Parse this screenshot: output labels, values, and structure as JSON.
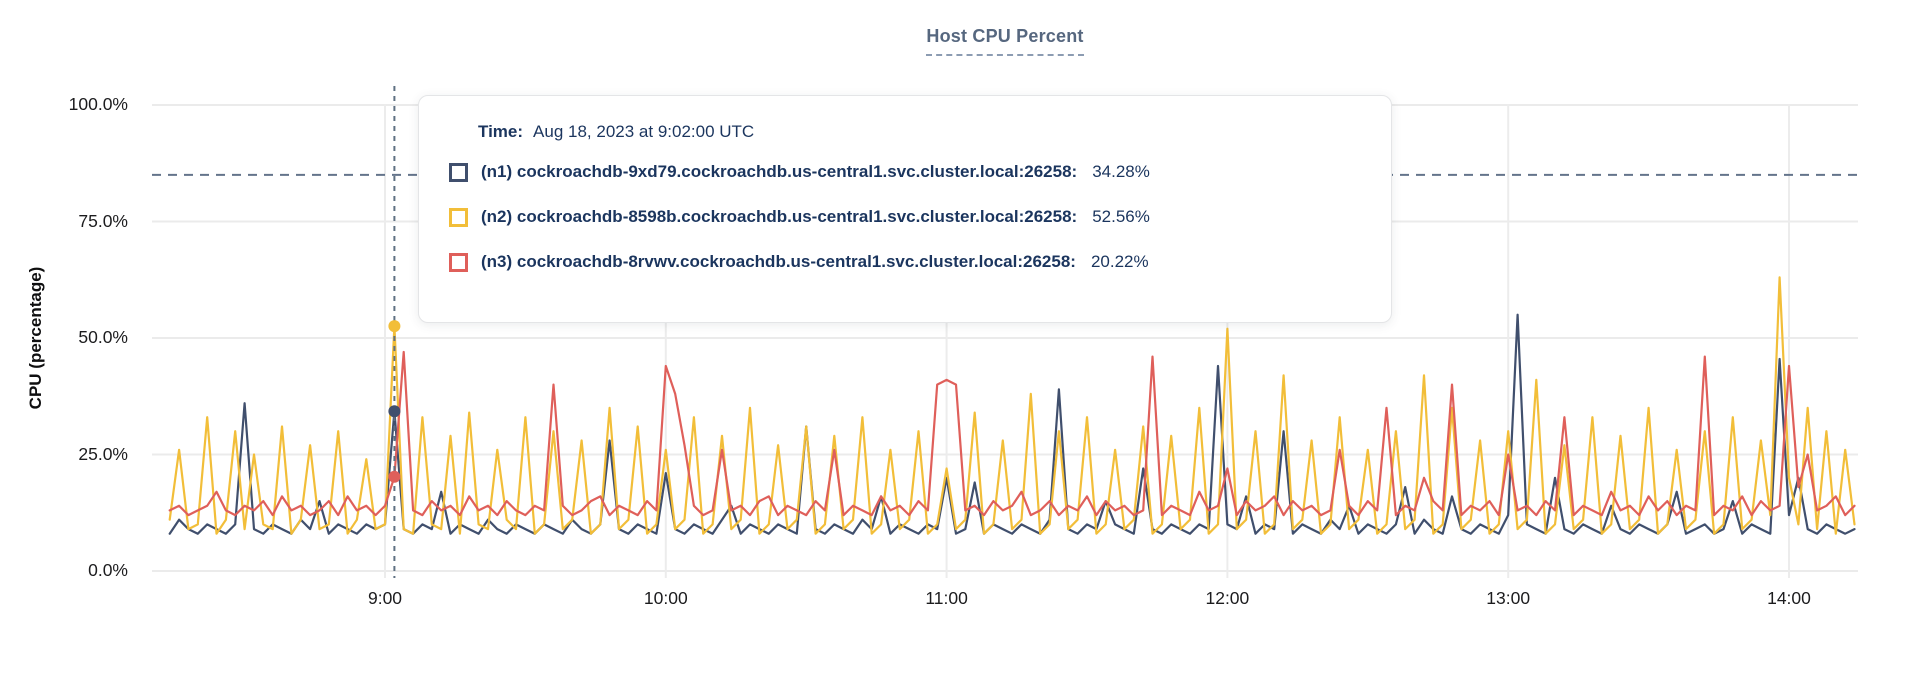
{
  "title": "Host CPU Percent",
  "axes": {
    "y_axis_label": "CPU (percentage)"
  },
  "tooltip": {
    "time_label": "Time:",
    "time_value": "Aug 18, 2023 at 9:02:00 UTC",
    "rows": [
      {
        "id": "n1",
        "label": "(n1) cockroachdb-9xd79.cockroachdb.us-central1.svc.cluster.local:26258:",
        "value": "34.28%",
        "color": "#404f6d"
      },
      {
        "id": "n2",
        "label": "(n2) cockroachdb-8598b.cockroachdb.us-central1.svc.cluster.local:26258:",
        "value": "52.56%",
        "color": "#f2be39"
      },
      {
        "id": "n3",
        "label": "(n3) cockroachdb-8rvwv.cockroachdb.us-central1.svc.cluster.local:26258:",
        "value": "20.22%",
        "color": "#df5f5a"
      }
    ]
  },
  "colors": {
    "grid": "#ebebeb",
    "threshold_dash": "#64748b",
    "hover_dash": "#5f7082",
    "text_navy": "#1b355e",
    "title_slate": "#56677f"
  },
  "chart_data": {
    "type": "line",
    "title": "Host CPU Percent",
    "xlabel": "",
    "ylabel": "CPU (percentage)",
    "ylim": [
      0,
      100
    ],
    "grid": true,
    "legend_position": "tooltip-only",
    "x_unit": "time-of-day",
    "x_start_minute": 494,
    "x_step_minutes": 2,
    "threshold_percent": 85,
    "y_ticks": [
      {
        "value": 100,
        "label": "100.0%"
      },
      {
        "value": 75,
        "label": "75.0%"
      },
      {
        "value": 50,
        "label": "50.0%"
      },
      {
        "value": 25,
        "label": "25.0%"
      },
      {
        "value": 0,
        "label": "0.0%"
      }
    ],
    "x_ticks": [
      {
        "minute": 540,
        "label": "9:00"
      },
      {
        "minute": 600,
        "label": "10:00"
      },
      {
        "minute": 660,
        "label": "11:00"
      },
      {
        "minute": 720,
        "label": "12:00"
      },
      {
        "minute": 780,
        "label": "13:00"
      },
      {
        "minute": 840,
        "label": "14:00"
      }
    ],
    "hover": {
      "minute": 542,
      "time": "Aug 18, 2023 at 9:02:00 UTC",
      "values": [
        34.28,
        52.56,
        20.22
      ]
    },
    "series": [
      {
        "id": "n1",
        "name": "(n1) cockroachdb-9xd79.cockroachdb.us-central1.svc.cluster.local:26258",
        "color": "#404f6d",
        "values": [
          8,
          11,
          9,
          8,
          10,
          9,
          8,
          10,
          36,
          9,
          8,
          10,
          9,
          8,
          11,
          9,
          15,
          8,
          10,
          9,
          8,
          10,
          9,
          10,
          34.3,
          9,
          8,
          10,
          9,
          17,
          8,
          10,
          9,
          8,
          11,
          9,
          8,
          10,
          9,
          8,
          10,
          9,
          8,
          11,
          9,
          8,
          10,
          28,
          9,
          8,
          10,
          9,
          8,
          21,
          9,
          8,
          10,
          9,
          8,
          11,
          14,
          8,
          10,
          9,
          8,
          10,
          9,
          8,
          31,
          9,
          8,
          10,
          9,
          8,
          11,
          9,
          16,
          8,
          10,
          9,
          8,
          10,
          9,
          20,
          8,
          9,
          19,
          8,
          10,
          9,
          8,
          10,
          9,
          8,
          11,
          39,
          9,
          8,
          10,
          9,
          15,
          10,
          9,
          8,
          22,
          9,
          8,
          10,
          9,
          8,
          10,
          9,
          44,
          10,
          9,
          16,
          8,
          10,
          9,
          30,
          8,
          10,
          9,
          8,
          11,
          9,
          14,
          8,
          10,
          9,
          8,
          10,
          18,
          8,
          11,
          9,
          8,
          16,
          9,
          8,
          10,
          9,
          8,
          12,
          55,
          10,
          9,
          8,
          20,
          9,
          8,
          10,
          9,
          8,
          14,
          9,
          8,
          10,
          9,
          8,
          10,
          17,
          8,
          9,
          10,
          8,
          9,
          15,
          8,
          10,
          9,
          8,
          45.5,
          12,
          20,
          9,
          8,
          10,
          9,
          8,
          9
        ]
      },
      {
        "id": "n2",
        "name": "(n2) cockroachdb-8598b.cockroachdb.us-central1.svc.cluster.local:26258",
        "color": "#f2be39",
        "values": [
          11,
          26,
          9,
          10,
          33,
          8,
          11,
          30,
          9,
          25,
          10,
          9,
          31,
          8,
          11,
          27,
          9,
          10,
          30,
          8,
          11,
          24,
          9,
          10,
          52.6,
          9,
          8,
          33,
          10,
          9,
          29,
          8,
          34,
          10,
          9,
          26,
          11,
          9,
          33,
          8,
          10,
          30,
          9,
          11,
          28,
          8,
          10,
          35,
          9,
          11,
          31,
          8,
          10,
          26,
          9,
          11,
          33,
          8,
          10,
          29,
          9,
          11,
          35,
          8,
          10,
          27,
          9,
          11,
          31,
          8,
          10,
          29,
          9,
          11,
          33,
          8,
          10,
          26,
          9,
          11,
          30,
          8,
          10,
          22,
          9,
          11,
          34,
          8,
          10,
          28,
          9,
          11,
          38,
          8,
          10,
          30,
          9,
          11,
          33,
          8,
          10,
          26,
          9,
          11,
          31,
          8,
          10,
          29,
          9,
          11,
          35,
          8,
          10,
          52,
          9,
          11,
          30,
          8,
          10,
          42,
          9,
          11,
          28,
          8,
          10,
          33,
          9,
          11,
          26,
          8,
          10,
          30,
          9,
          11,
          42,
          8,
          10,
          35,
          9,
          11,
          28,
          8,
          10,
          30,
          9,
          11,
          41,
          8,
          10,
          27,
          9,
          11,
          33,
          8,
          10,
          29,
          9,
          11,
          35,
          8,
          10,
          26,
          9,
          11,
          30,
          8,
          10,
          33,
          9,
          11,
          28,
          12,
          63,
          20,
          10,
          35,
          9,
          30,
          8,
          26,
          10
        ]
      },
      {
        "id": "n3",
        "name": "(n3) cockroachdb-8rvwv.cockroachdb.us-central1.svc.cluster.local:26258",
        "color": "#df5f5a",
        "values": [
          13,
          14,
          12,
          13,
          14,
          17,
          13,
          12,
          14,
          13,
          15,
          12,
          16,
          13,
          14,
          12,
          13,
          15,
          12,
          16,
          13,
          14,
          12,
          14,
          20.2,
          47,
          13,
          12,
          15,
          13,
          14,
          12,
          16,
          13,
          14,
          12,
          15,
          13,
          12,
          14,
          13,
          40,
          14,
          12,
          13,
          15,
          16,
          12,
          14,
          13,
          12,
          15,
          13,
          44,
          38,
          27,
          14,
          12,
          13,
          26,
          13,
          14,
          12,
          15,
          16,
          12,
          14,
          13,
          12,
          15,
          13,
          26,
          12,
          14,
          13,
          12,
          16,
          13,
          14,
          12,
          15,
          13,
          40,
          41,
          40,
          13,
          14,
          12,
          15,
          13,
          14,
          17,
          12,
          13,
          15,
          12,
          14,
          13,
          16,
          12,
          15,
          13,
          14,
          12,
          13,
          46,
          12,
          14,
          13,
          12,
          17,
          13,
          14,
          22,
          12,
          15,
          13,
          14,
          16,
          12,
          15,
          13,
          14,
          12,
          13,
          26,
          14,
          12,
          15,
          13,
          35,
          12,
          14,
          13,
          20,
          15,
          13,
          40,
          12,
          14,
          13,
          15,
          12,
          25,
          13,
          14,
          12,
          15,
          13,
          33,
          12,
          14,
          13,
          12,
          17,
          13,
          14,
          12,
          16,
          13,
          15,
          12,
          14,
          13,
          46,
          12,
          14,
          13,
          16,
          12,
          15,
          13,
          14,
          44,
          18,
          25,
          13,
          14,
          16,
          12,
          14
        ]
      }
    ]
  }
}
